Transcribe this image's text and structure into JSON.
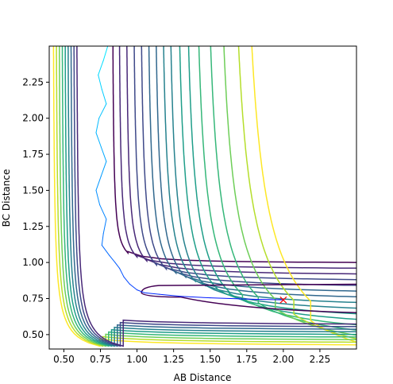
{
  "chart_data": {
    "type": "contour",
    "title": "",
    "xlabel": "AB Distance",
    "ylabel": "BC Distance",
    "xlim": [
      0.4,
      2.5
    ],
    "ylim": [
      0.4,
      2.5
    ],
    "x_ticks": [
      0.5,
      0.75,
      1.0,
      1.25,
      1.5,
      1.75,
      2.0,
      2.25
    ],
    "y_ticks": [
      0.5,
      0.75,
      1.0,
      1.25,
      1.5,
      1.75,
      2.0,
      2.25
    ],
    "x_tick_labels": [
      "0.50",
      "0.75",
      "1.00",
      "1.25",
      "1.50",
      "1.75",
      "2.00",
      "2.25"
    ],
    "y_tick_labels": [
      "0.50",
      "0.75",
      "1.00",
      "1.25",
      "1.50",
      "1.75",
      "2.00",
      "2.25"
    ],
    "grid": false,
    "colormap": "viridis",
    "contour_colors": [
      "#440154",
      "#482878",
      "#3e4989",
      "#31688e",
      "#26828e",
      "#1f9e89",
      "#35b779",
      "#6ece58",
      "#b5de2b",
      "#fde725"
    ],
    "contours": [
      {
        "channel_x": 0.835,
        "asymptote_y": 1.0,
        "shoulder": 0.11,
        "color_index": 0
      },
      {
        "channel_x": 0.88,
        "asymptote_y": 0.96,
        "shoulder": 0.13,
        "color_index": 1
      },
      {
        "channel_x": 0.93,
        "asymptote_y": 0.92,
        "shoulder": 0.15,
        "color_index": 1
      },
      {
        "channel_x": 0.98,
        "asymptote_y": 0.88,
        "shoulder": 0.17,
        "color_index": 2
      },
      {
        "channel_x": 1.03,
        "asymptote_y": 0.84,
        "shoulder": 0.19,
        "color_index": 2
      },
      {
        "channel_x": 1.08,
        "asymptote_y": 0.8,
        "shoulder": 0.21,
        "color_index": 3
      },
      {
        "channel_x": 1.13,
        "asymptote_y": 0.76,
        "shoulder": 0.23,
        "color_index": 3
      },
      {
        "channel_x": 1.18,
        "asymptote_y": 0.72,
        "shoulder": 0.25,
        "color_index": 4
      },
      {
        "channel_x": 1.23,
        "asymptote_y": 0.68,
        "shoulder": 0.27,
        "color_index": 4
      },
      {
        "channel_x": 1.29,
        "asymptote_y": 0.64,
        "shoulder": 0.3,
        "color_index": 5
      },
      {
        "channel_x": 1.35,
        "asymptote_y": 0.6,
        "shoulder": 0.33,
        "color_index": 5
      },
      {
        "channel_x": 1.42,
        "asymptote_y": 0.56,
        "shoulder": 0.36,
        "color_index": 6
      },
      {
        "channel_x": 1.5,
        "asymptote_y": 0.52,
        "shoulder": 0.4,
        "color_index": 6
      },
      {
        "channel_x": 1.59,
        "asymptote_y": 0.48,
        "shoulder": 0.44,
        "color_index": 7
      },
      {
        "channel_x": 1.69,
        "asymptote_y": 0.45,
        "shoulder": 0.48,
        "color_index": 8
      },
      {
        "channel_x": 1.78,
        "asymptote_y": 0.42,
        "shoulder": 0.52,
        "color_index": 9
      }
    ],
    "inner_wall_contours": [
      {
        "offset": 0.0,
        "color_index": 9
      },
      {
        "offset": 0.02,
        "color_index": 8
      },
      {
        "offset": 0.04,
        "color_index": 7
      },
      {
        "offset": 0.06,
        "color_index": 6
      },
      {
        "offset": 0.08,
        "color_index": 5
      },
      {
        "offset": 0.1,
        "color_index": 4
      },
      {
        "offset": 0.12,
        "color_index": 3
      },
      {
        "offset": 0.14,
        "color_index": 2
      },
      {
        "offset": 0.16,
        "color_index": 1
      }
    ],
    "well_contour": {
      "color_index": 0,
      "upper_y": 0.85,
      "lower_y": 0.65,
      "tip_x": 1.03,
      "tip_y": 0.82
    },
    "trajectory": {
      "color_start": "#00e5ff",
      "color_end": "#0000ff",
      "points": [
        [
          0.8,
          2.5
        ],
        [
          0.77,
          2.4
        ],
        [
          0.735,
          2.3
        ],
        [
          0.76,
          2.2
        ],
        [
          0.79,
          2.1
        ],
        [
          0.74,
          2.0
        ],
        [
          0.72,
          1.9
        ],
        [
          0.755,
          1.8
        ],
        [
          0.79,
          1.7
        ],
        [
          0.755,
          1.6
        ],
        [
          0.72,
          1.5
        ],
        [
          0.745,
          1.4
        ],
        [
          0.79,
          1.3
        ],
        [
          0.77,
          1.2
        ],
        [
          0.76,
          1.12
        ],
        [
          0.81,
          1.05
        ],
        [
          0.85,
          1.0
        ],
        [
          0.88,
          0.96
        ],
        [
          0.91,
          0.9
        ],
        [
          0.95,
          0.85
        ],
        [
          1.0,
          0.81
        ],
        [
          1.05,
          0.79
        ],
        [
          1.15,
          0.78
        ],
        [
          1.3,
          0.765
        ],
        [
          1.5,
          0.755
        ],
        [
          1.7,
          0.748
        ],
        [
          1.85,
          0.744
        ],
        [
          2.0,
          0.741
        ]
      ]
    },
    "marker": {
      "x": 2.0,
      "y": 0.74,
      "symbol": "x",
      "color": "#ff0000"
    }
  }
}
